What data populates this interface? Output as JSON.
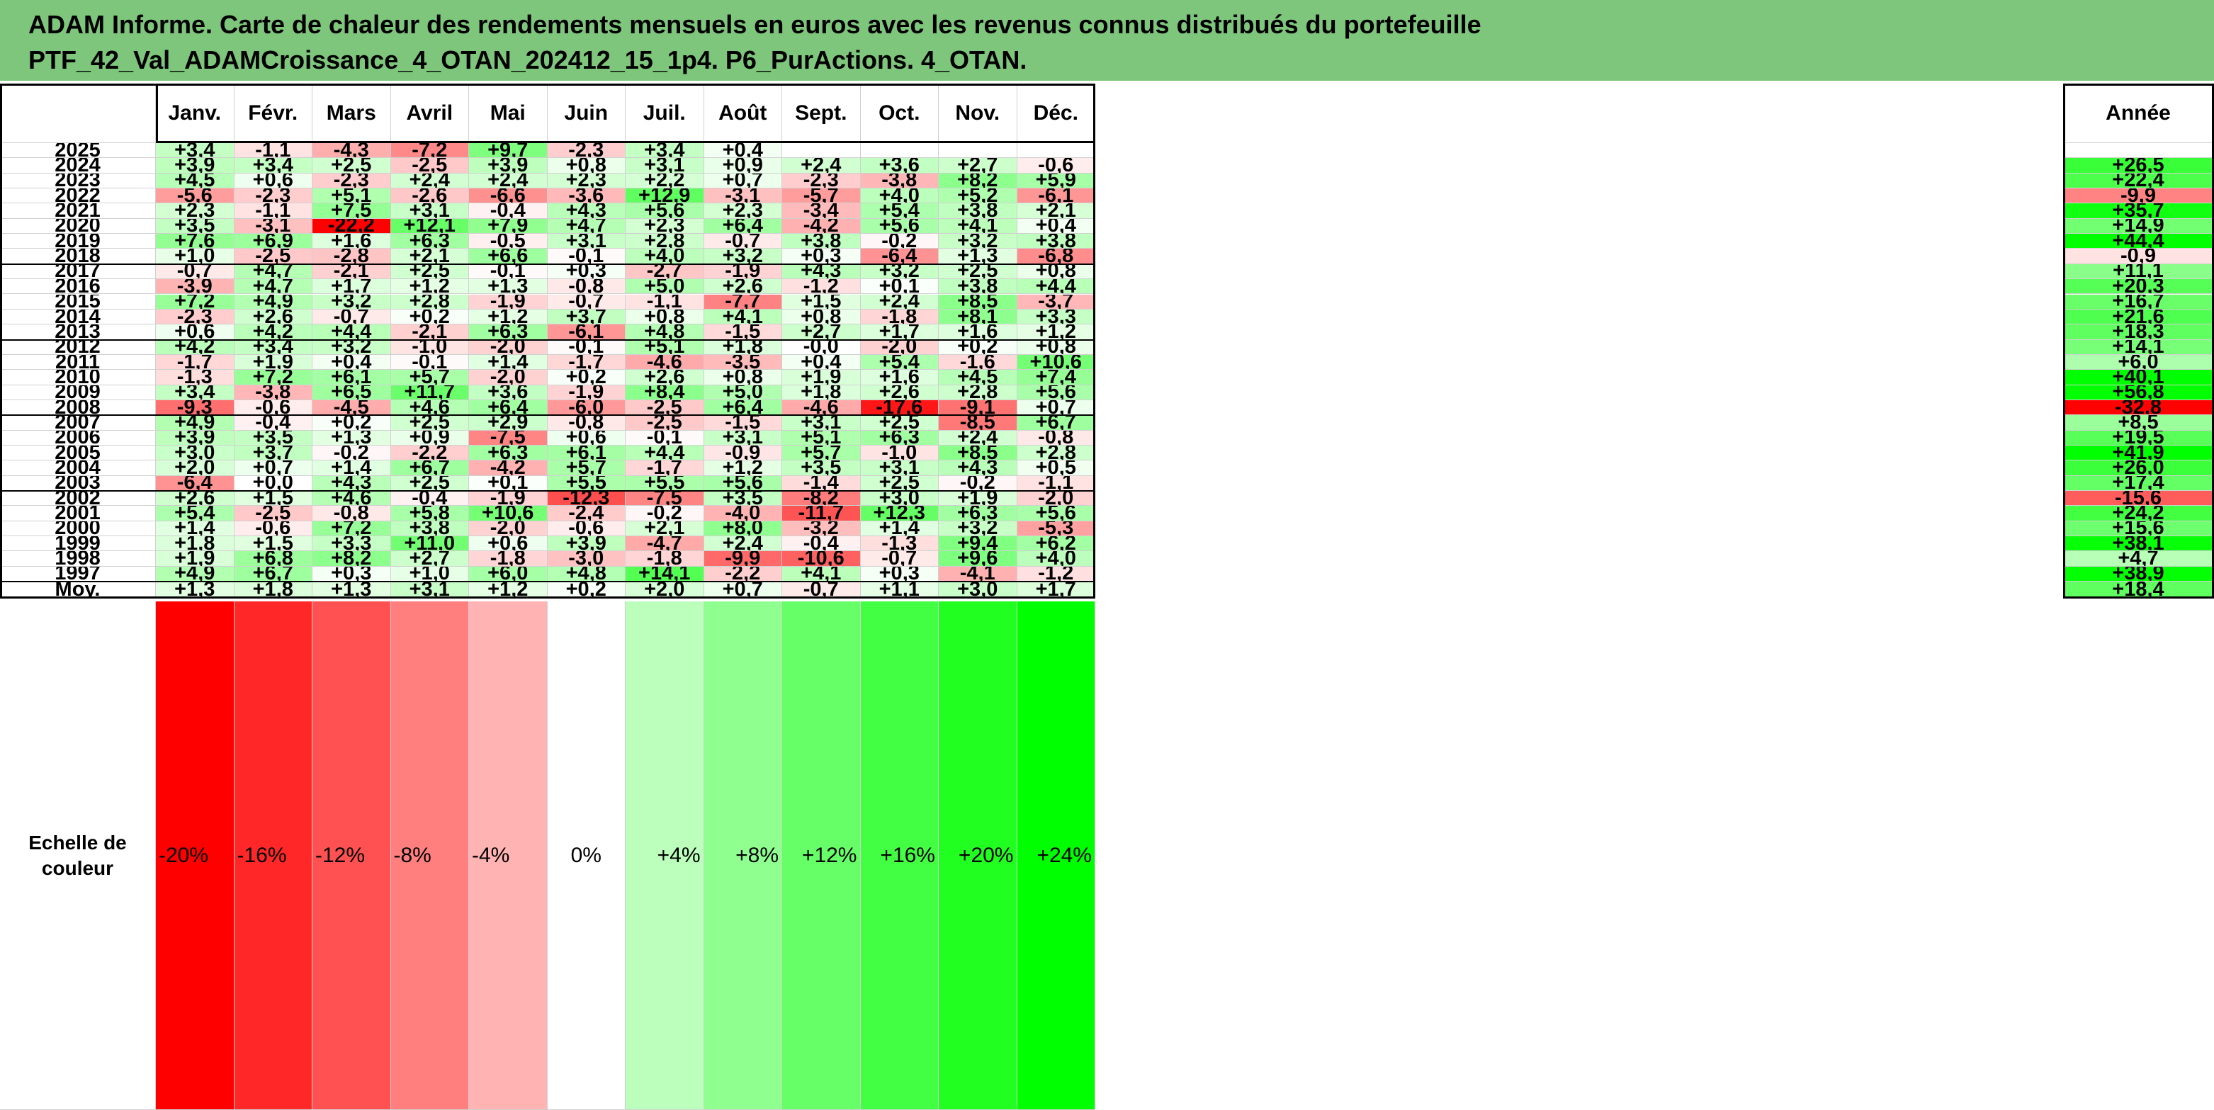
{
  "title": {
    "line1": "ADAM Informe. Carte de chaleur des rendements mensuels en euros avec les revenus connus distribués du portefeuille",
    "line2": "PTF_42_Val_ADAMCroissance_4_OTAN_202412_15_1p4. P6_PurActions. 4_OTAN."
  },
  "colors": {
    "banner": "#7dc67b",
    "negative_max": "#ff0000",
    "positive_max": "#00ff00",
    "neutral": "#ffffff"
  },
  "chart_data": {
    "type": "heatmap",
    "columns": [
      "Janv.",
      "Févr.",
      "Mars",
      "Avril",
      "Mai",
      "Juin",
      "Juil.",
      "Août",
      "Sept.",
      "Oct.",
      "Nov.",
      "Déc."
    ],
    "year_column": "Année",
    "rows": [
      {
        "year": "2025",
        "months": [
          "+3,4",
          "-1,1",
          "-4,3",
          "-7,2",
          "+9,7",
          "-2,3",
          "+3,4",
          "+0,4",
          "",
          "",
          "",
          ""
        ],
        "annual": ""
      },
      {
        "year": "2024",
        "months": [
          "+3,9",
          "+3,4",
          "+2,5",
          "-2,5",
          "+3,9",
          "+0,8",
          "+3,1",
          "+0,9",
          "+2,4",
          "+3,6",
          "+2,7",
          "-0,6"
        ],
        "annual": "+26,5"
      },
      {
        "year": "2023",
        "months": [
          "+4,5",
          "+0,6",
          "-2,3",
          "+2,4",
          "+2,4",
          "+2,3",
          "+2,2",
          "+0,7",
          "-2,3",
          "-3,8",
          "+8,2",
          "+5,9"
        ],
        "annual": "+22,4"
      },
      {
        "year": "2022",
        "months": [
          "-5,6",
          "-2,3",
          "+5,1",
          "-2,6",
          "-6,6",
          "-3,6",
          "+12,9",
          "-3,1",
          "-5,7",
          "+4,0",
          "+5,2",
          "-6,1"
        ],
        "annual": "-9,9"
      },
      {
        "year": "2021",
        "months": [
          "+2,3",
          "-1,1",
          "+7,5",
          "+3,1",
          "-0,4",
          "+4,3",
          "+5,6",
          "+2,3",
          "-3,4",
          "+5,4",
          "+3,8",
          "+2,1"
        ],
        "annual": "+35,7"
      },
      {
        "year": "2020",
        "months": [
          "+3,5",
          "-3,1",
          "-22,2",
          "+12,1",
          "+7,9",
          "+4,7",
          "+2,3",
          "+6,4",
          "-4,2",
          "+5,6",
          "+4,1",
          "+0,4"
        ],
        "annual": "+14,9"
      },
      {
        "year": "2019",
        "months": [
          "+7,6",
          "+6,9",
          "+1,6",
          "+6,3",
          "-0,5",
          "+3,1",
          "+2,8",
          "-0,7",
          "+3,8",
          "-0,2",
          "+3,2",
          "+3,8"
        ],
        "annual": "+44,4"
      },
      {
        "year": "2018",
        "months": [
          "+1,0",
          "-2,5",
          "-2,8",
          "+2,1",
          "+6,6",
          "-0,1",
          "+4,0",
          "+3,2",
          "+0,3",
          "-6,4",
          "+1,3",
          "-6,8"
        ],
        "annual": "-0,9"
      },
      {
        "year": "2017",
        "months": [
          "-0,7",
          "+4,7",
          "-2,1",
          "+2,5",
          "-0,1",
          "+0,3",
          "-2,7",
          "-1,9",
          "+4,3",
          "+3,2",
          "+2,5",
          "+0,8"
        ],
        "annual": "+11,1"
      },
      {
        "year": "2016",
        "months": [
          "-3,9",
          "+4,7",
          "+1,7",
          "+1,2",
          "+1,3",
          "-0,8",
          "+5,0",
          "+2,6",
          "-1,2",
          "+0,1",
          "+3,8",
          "+4,4"
        ],
        "annual": "+20,3"
      },
      {
        "year": "2015",
        "months": [
          "+7,2",
          "+4,9",
          "+3,2",
          "+2,8",
          "-1,9",
          "-0,7",
          "-1,1",
          "-7,7",
          "+1,5",
          "+2,4",
          "+8,5",
          "-3,7"
        ],
        "annual": "+16,7"
      },
      {
        "year": "2014",
        "months": [
          "-2,3",
          "+2,6",
          "-0,7",
          "+0,2",
          "+1,2",
          "+3,7",
          "+0,8",
          "+4,1",
          "+0,8",
          "-1,8",
          "+8,1",
          "+3,3"
        ],
        "annual": "+21,6"
      },
      {
        "year": "2013",
        "months": [
          "+0,6",
          "+4,2",
          "+4,4",
          "-2,1",
          "+6,3",
          "-6,1",
          "+4,8",
          "-1,5",
          "+2,7",
          "+1,7",
          "+1,6",
          "+1,2"
        ],
        "annual": "+18,3"
      },
      {
        "year": "2012",
        "months": [
          "+4,2",
          "+3,4",
          "+3,2",
          "-1,0",
          "-2,0",
          "-0,1",
          "+5,1",
          "+1,8",
          "-0,0",
          "-2,0",
          "+0,2",
          "+0,8"
        ],
        "annual": "+14,1"
      },
      {
        "year": "2011",
        "months": [
          "-1,7",
          "+1,9",
          "+0,4",
          "-0,1",
          "+1,4",
          "-1,7",
          "-4,6",
          "-3,5",
          "+0,4",
          "+5,4",
          "-1,6",
          "+10,6"
        ],
        "annual": "+6,0"
      },
      {
        "year": "2010",
        "months": [
          "-1,3",
          "+7,2",
          "+6,1",
          "+5,7",
          "-2,0",
          "+0,2",
          "+2,6",
          "+0,8",
          "+1,9",
          "+1,6",
          "+4,5",
          "+7,4"
        ],
        "annual": "+40,1"
      },
      {
        "year": "2009",
        "months": [
          "+3,4",
          "-3,8",
          "+6,5",
          "+11,7",
          "+3,6",
          "-1,9",
          "+8,4",
          "+5,0",
          "+1,8",
          "+2,6",
          "+2,8",
          "+5,6"
        ],
        "annual": "+56,8"
      },
      {
        "year": "2008",
        "months": [
          "-9,3",
          "-0,6",
          "-4,5",
          "+4,6",
          "+6,4",
          "-6,0",
          "-2,5",
          "+6,4",
          "-4,6",
          "-17,6",
          "-9,1",
          "+0,7"
        ],
        "annual": "-32,8"
      },
      {
        "year": "2007",
        "months": [
          "+4,9",
          "-0,4",
          "+0,2",
          "+2,5",
          "+2,9",
          "-0,8",
          "-2,5",
          "-1,5",
          "+3,1",
          "+2,5",
          "-8,5",
          "+6,7"
        ],
        "annual": "+8,5"
      },
      {
        "year": "2006",
        "months": [
          "+3,9",
          "+3,5",
          "+1,3",
          "+0,9",
          "-7,5",
          "+0,6",
          "-0,1",
          "+3,1",
          "+5,1",
          "+6,3",
          "+2,4",
          "-0,8"
        ],
        "annual": "+19,5"
      },
      {
        "year": "2005",
        "months": [
          "+3,0",
          "+3,7",
          "-0,2",
          "-2,2",
          "+6,3",
          "+6,1",
          "+4,4",
          "-0,9",
          "+5,7",
          "-1,0",
          "+8,5",
          "+2,8"
        ],
        "annual": "+41,9"
      },
      {
        "year": "2004",
        "months": [
          "+2,0",
          "+0,7",
          "+1,4",
          "+6,7",
          "-4,2",
          "+5,7",
          "-1,7",
          "+1,2",
          "+3,5",
          "+3,1",
          "+4,3",
          "+0,5"
        ],
        "annual": "+26,0"
      },
      {
        "year": "2003",
        "months": [
          "-6,4",
          "+0,0",
          "+4,3",
          "+2,5",
          "+0,1",
          "+5,5",
          "+5,5",
          "+5,6",
          "-1,4",
          "+2,5",
          "-0,2",
          "-1,1"
        ],
        "annual": "+17,4"
      },
      {
        "year": "2002",
        "months": [
          "+2,6",
          "+1,5",
          "+4,6",
          "-0,4",
          "-1,9",
          "-12,3",
          "-7,5",
          "+3,5",
          "-8,2",
          "+3,0",
          "+1,9",
          "-2,0"
        ],
        "annual": "-15,6"
      },
      {
        "year": "2001",
        "months": [
          "+5,4",
          "-2,5",
          "-0,8",
          "+5,8",
          "+10,6",
          "-2,4",
          "-0,2",
          "-4,0",
          "-11,7",
          "+12,3",
          "+6,3",
          "+5,6"
        ],
        "annual": "+24,2"
      },
      {
        "year": "2000",
        "months": [
          "+1,4",
          "-0,6",
          "+7,2",
          "+3,8",
          "-2,0",
          "-0,6",
          "+2,1",
          "+8,0",
          "-3,2",
          "+1,4",
          "+3,2",
          "-5,3"
        ],
        "annual": "+15,6"
      },
      {
        "year": "1999",
        "months": [
          "+1,8",
          "+1,5",
          "+3,3",
          "+11,0",
          "+0,6",
          "+3,9",
          "-4,7",
          "+2,4",
          "-0,4",
          "-1,3",
          "+9,4",
          "+6,2"
        ],
        "annual": "+38,1"
      },
      {
        "year": "1998",
        "months": [
          "+1,9",
          "+6,8",
          "+8,2",
          "+2,7",
          "-1,8",
          "-3,0",
          "-1,8",
          "-9,9",
          "-10,6",
          "-0,7",
          "+9,6",
          "+4,0"
        ],
        "annual": "+4,7"
      },
      {
        "year": "1997",
        "months": [
          "+4,9",
          "+6,7",
          "+0,3",
          "+1,0",
          "+6,0",
          "+4,8",
          "+14,1",
          "-2,2",
          "+4,1",
          "+0,3",
          "-4,1",
          "-1,2"
        ],
        "annual": "+38,9"
      }
    ],
    "average": {
      "label": "Moy.",
      "months": [
        "+1,3",
        "+1,8",
        "+1,3",
        "+3,1",
        "+1,2",
        "+0,2",
        "+2,0",
        "+0,7",
        "-0,7",
        "+1,1",
        "+3,0",
        "+1,7"
      ],
      "annual": "+18,4"
    },
    "color_scale": {
      "label_line1": "Echelle de",
      "label_line2": "couleur",
      "steps": [
        "-20%",
        "-16%",
        "-12%",
        "-8%",
        "-4%",
        "0%",
        "+4%",
        "+8%",
        "+12%",
        "+16%",
        "+20%",
        "+24%"
      ],
      "values": [
        -20,
        -16,
        -12,
        -8,
        -4,
        0,
        4,
        8,
        12,
        16,
        20,
        24
      ]
    }
  }
}
